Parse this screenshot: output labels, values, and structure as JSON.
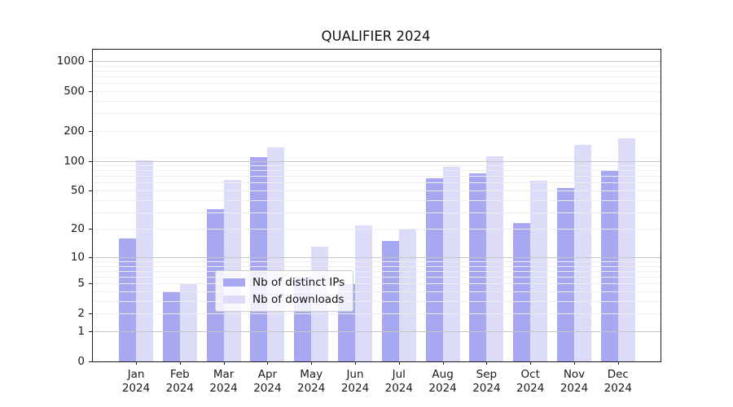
{
  "title": "QUALIFIER 2024",
  "chart_data": {
    "type": "bar",
    "title": "QUALIFIER 2024",
    "categories": [
      "Jan 2024",
      "Feb 2024",
      "Mar 2024",
      "Apr 2024",
      "May 2024",
      "Jun 2024",
      "Jul 2024",
      "Aug 2024",
      "Sep 2024",
      "Oct 2024",
      "Nov 2024",
      "Dec 2024"
    ],
    "series": [
      {
        "name": "Nb of distinct IPs",
        "color": "#a8a8f2",
        "values": [
          16,
          4,
          32,
          108,
          6,
          5,
          15,
          67,
          74,
          23,
          53,
          80
        ]
      },
      {
        "name": "Nb of downloads",
        "color": "#dcdcf8",
        "values": [
          100,
          5,
          64,
          137,
          13,
          22,
          20,
          87,
          110,
          63,
          145,
          168
        ]
      }
    ],
    "xlabel": "",
    "ylabel": "",
    "y_scale": "log10(1+x)",
    "y_ticks": [
      0,
      1,
      2,
      5,
      10,
      20,
      50,
      100,
      200,
      500,
      1000
    ],
    "ylim": [
      0,
      1300
    ],
    "grid": "on",
    "legend_position": "lower-center"
  },
  "colors": {
    "grid_major": "#c6c6c6",
    "grid_minor": "#ececec",
    "axis": "#1a1a1a",
    "background": "#ffffff"
  }
}
